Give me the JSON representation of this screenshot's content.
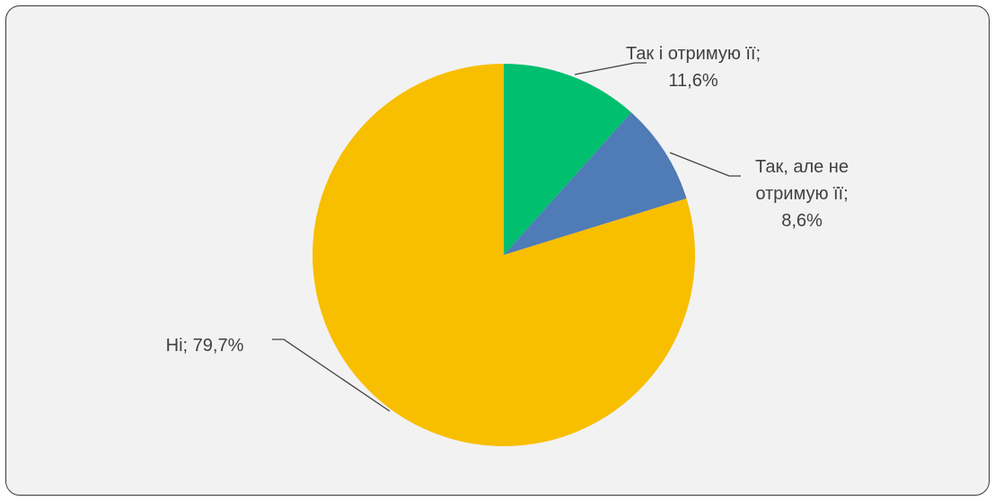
{
  "chart_data": {
    "type": "pie",
    "slices": [
      {
        "category": "Так і отримую її",
        "value": 11.6,
        "color": "#00bf6f",
        "label_lines": [
          "Так і отримую її;",
          "11,6%"
        ]
      },
      {
        "category": "Так, але не отримую її",
        "value": 8.6,
        "color": "#4f7bb6",
        "label_lines": [
          "Так, але не",
          "отримую її;",
          "8,6%"
        ]
      },
      {
        "category": "Ні",
        "value": 79.7,
        "color": "#f8be00",
        "label_lines": [
          "Ні; 79,7%"
        ]
      }
    ],
    "start_angle_deg": 0,
    "direction": "clockwise",
    "legend": "none"
  }
}
